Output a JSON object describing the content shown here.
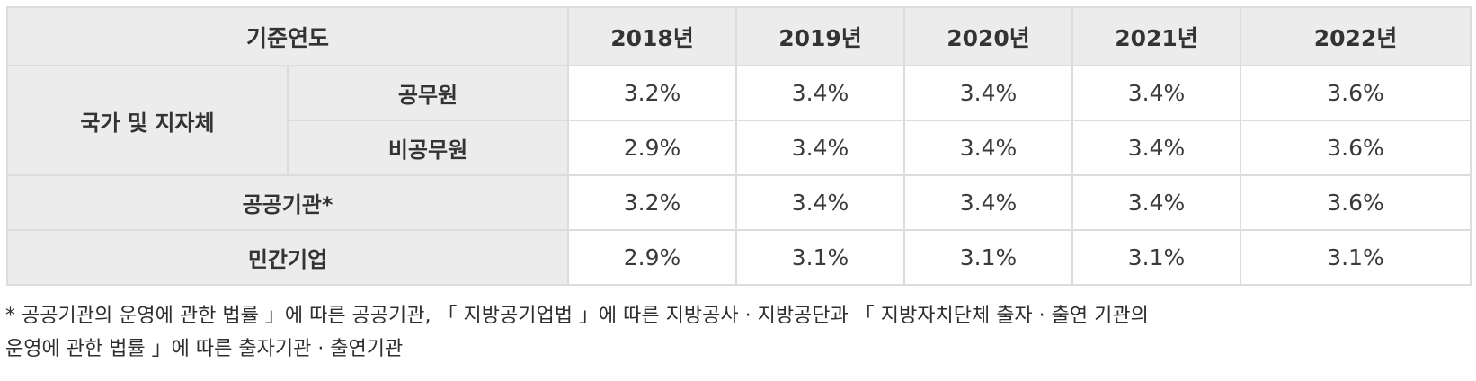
{
  "table": {
    "header": {
      "base_year_label": "기준연도",
      "years": [
        "2018년",
        "2019년",
        "2020년",
        "2021년",
        "2022년"
      ]
    },
    "group_label": "국가 및 지자체",
    "rows": [
      {
        "label": "공무원",
        "values": [
          "3.2%",
          "3.4%",
          "3.4%",
          "3.4%",
          "3.6%"
        ]
      },
      {
        "label": "비공무원",
        "values": [
          "2.9%",
          "3.4%",
          "3.4%",
          "3.4%",
          "3.6%"
        ]
      },
      {
        "label": "공공기관*",
        "values": [
          "3.2%",
          "3.4%",
          "3.4%",
          "3.4%",
          "3.6%"
        ]
      },
      {
        "label": "민간기업",
        "values": [
          "2.9%",
          "3.1%",
          "3.1%",
          "3.1%",
          "3.1%"
        ]
      }
    ]
  },
  "footnote": {
    "line1": "* 공공기관의 운영에 관한 법률 」에 따른 공공기관, 「 지방공기업법 」에 따른 지방공사 · 지방공단과 「 지방자치단체 출자 · 출연 기관의",
    "line2": "운영에 관한 법률 」에 따른 출자기관 · 출연기관"
  }
}
